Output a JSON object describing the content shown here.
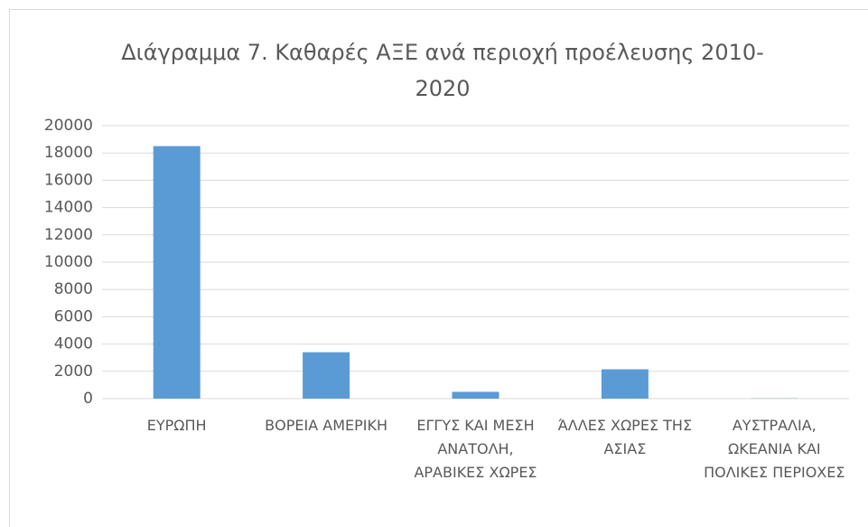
{
  "chart_data": {
    "type": "bar",
    "title": "Διάγραμμα 7. Καθαρές ΑΞΕ ανά περιοχή προέλευσης 2010-2020",
    "categories": [
      "ΕΥΡΩΠΗ",
      "ΒΟΡΕΙΑ ΑΜΕΡΙΚΗ",
      "ΕΓΓΥΣ ΚΑΙ ΜΕΣΗ ΑΝΑΤΟΛΗ, ΑΡΑΒΙΚΕΣ ΧΩΡΕΣ",
      "ΆΛΛΕΣ ΧΩΡΕΣ ΤΗΣ ΑΣΙΑΣ",
      "ΑΥΣΤΡΑΛΙΑ, ΩΚΕΑΝΙΑ ΚΑΙ ΠΟΛΙΚΕΣ ΠΕΡΙΟΧΕΣ"
    ],
    "values": [
      18500,
      3400,
      500,
      2150,
      20
    ],
    "color": "#5b9bd5",
    "ylim": [
      0,
      20000
    ],
    "yticks": [
      0,
      2000,
      4000,
      6000,
      8000,
      10000,
      12000,
      14000,
      16000,
      18000,
      20000
    ],
    "grid": true
  }
}
